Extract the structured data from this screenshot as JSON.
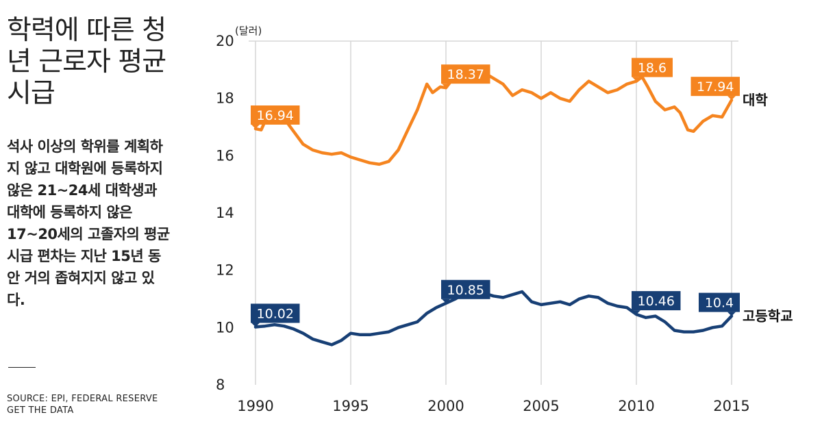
{
  "title": "학력에 따른 청년 근로자 평균 시급",
  "description": "석사 이상의 학위를 계획하지 않고 대학원에 등록하지 않은 21~24세 대학생과 대학에 등록하지 않은 17~20세의 고졸자의 평균 시급 편차는 지난 15년 동안 거의 좁혀지지 않고 있다.",
  "source": "SOURCE: EPI, FEDERAL RESERVE GET THE DATA",
  "colors": {
    "college": "#f5841f",
    "highschool": "#173f75",
    "grid": "#d6d6d6"
  },
  "chart_data": {
    "type": "line",
    "xlim": [
      1990,
      2015
    ],
    "ylim": [
      8,
      20
    ],
    "y_unit": "(달러)",
    "x_ticks": [
      1990,
      1995,
      2000,
      2005,
      2010,
      2015
    ],
    "y_ticks": [
      8,
      10,
      12,
      14,
      16,
      18,
      20
    ],
    "grid": "vertical-and-top",
    "series": [
      {
        "name": "대학",
        "color": "#f5841f",
        "x": [
          1990.0,
          1990.3,
          1990.6,
          1991.0,
          1991.5,
          1992.0,
          1992.5,
          1993.0,
          1993.5,
          1994.0,
          1994.5,
          1995.0,
          1995.5,
          1996.0,
          1996.5,
          1997.0,
          1997.5,
          1998.0,
          1998.5,
          1999.0,
          1999.3,
          1999.7,
          2000.0,
          2000.5,
          2001.0,
          2001.5,
          2002.0,
          2002.5,
          2003.0,
          2003.5,
          2004.0,
          2004.5,
          2005.0,
          2005.5,
          2006.0,
          2006.5,
          2007.0,
          2007.5,
          2008.0,
          2008.5,
          2009.0,
          2009.5,
          2010.0,
          2010.3,
          2010.6,
          2011.0,
          2011.5,
          2012.0,
          2012.3,
          2012.7,
          2013.0,
          2013.5,
          2014.0,
          2014.5,
          2015.0
        ],
        "y": [
          16.94,
          16.9,
          17.35,
          17.5,
          17.3,
          16.85,
          16.4,
          16.2,
          16.1,
          16.05,
          16.1,
          15.95,
          15.85,
          15.75,
          15.7,
          15.8,
          16.2,
          16.9,
          17.6,
          18.5,
          18.2,
          18.4,
          18.37,
          18.8,
          19.0,
          19.1,
          18.9,
          18.7,
          18.5,
          18.1,
          18.3,
          18.2,
          18.0,
          18.2,
          18.0,
          17.9,
          18.3,
          18.6,
          18.4,
          18.2,
          18.3,
          18.5,
          18.6,
          18.75,
          18.4,
          17.9,
          17.6,
          17.7,
          17.5,
          16.9,
          16.85,
          17.2,
          17.4,
          17.35,
          17.94
        ]
      },
      {
        "name": "고등학교",
        "color": "#173f75",
        "x": [
          1990.0,
          1990.5,
          1991.0,
          1991.5,
          1992.0,
          1992.5,
          1993.0,
          1993.5,
          1994.0,
          1994.5,
          1995.0,
          1995.5,
          1996.0,
          1996.5,
          1997.0,
          1997.5,
          1998.0,
          1998.5,
          1999.0,
          1999.5,
          2000.0,
          2000.5,
          2001.0,
          2001.5,
          2002.0,
          2002.5,
          2003.0,
          2003.5,
          2004.0,
          2004.5,
          2005.0,
          2005.5,
          2006.0,
          2006.5,
          2007.0,
          2007.5,
          2008.0,
          2008.5,
          2009.0,
          2009.5,
          2010.0,
          2010.5,
          2011.0,
          2011.5,
          2012.0,
          2012.5,
          2013.0,
          2013.5,
          2014.0,
          2014.5,
          2015.0
        ],
        "y": [
          10.02,
          10.05,
          10.1,
          10.05,
          9.95,
          9.8,
          9.6,
          9.5,
          9.4,
          9.55,
          9.8,
          9.75,
          9.75,
          9.8,
          9.85,
          10.0,
          10.1,
          10.2,
          10.5,
          10.7,
          10.85,
          11.0,
          11.2,
          11.15,
          11.2,
          11.1,
          11.05,
          11.15,
          11.25,
          10.9,
          10.8,
          10.85,
          10.9,
          10.8,
          11.0,
          11.1,
          11.05,
          10.85,
          10.75,
          10.7,
          10.46,
          10.35,
          10.4,
          10.2,
          9.9,
          9.85,
          9.85,
          9.9,
          10.0,
          10.05,
          10.4
        ]
      }
    ],
    "annotations": [
      {
        "series": "대학",
        "x": 1990.0,
        "y": 16.94,
        "label": "16.94"
      },
      {
        "series": "대학",
        "x": 2000.0,
        "y": 18.37,
        "label": "18.37"
      },
      {
        "series": "대학",
        "x": 2010.0,
        "y": 18.6,
        "label": "18.6"
      },
      {
        "series": "대학",
        "x": 2015.0,
        "y": 17.94,
        "label": "17.94"
      },
      {
        "series": "고등학교",
        "x": 1990.0,
        "y": 10.02,
        "label": "10.02"
      },
      {
        "series": "고등학교",
        "x": 2000.0,
        "y": 10.85,
        "label": "10.85"
      },
      {
        "series": "고등학교",
        "x": 2010.0,
        "y": 10.46,
        "label": "10.46"
      },
      {
        "series": "고등학교",
        "x": 2015.0,
        "y": 10.4,
        "label": "10.4"
      }
    ]
  }
}
